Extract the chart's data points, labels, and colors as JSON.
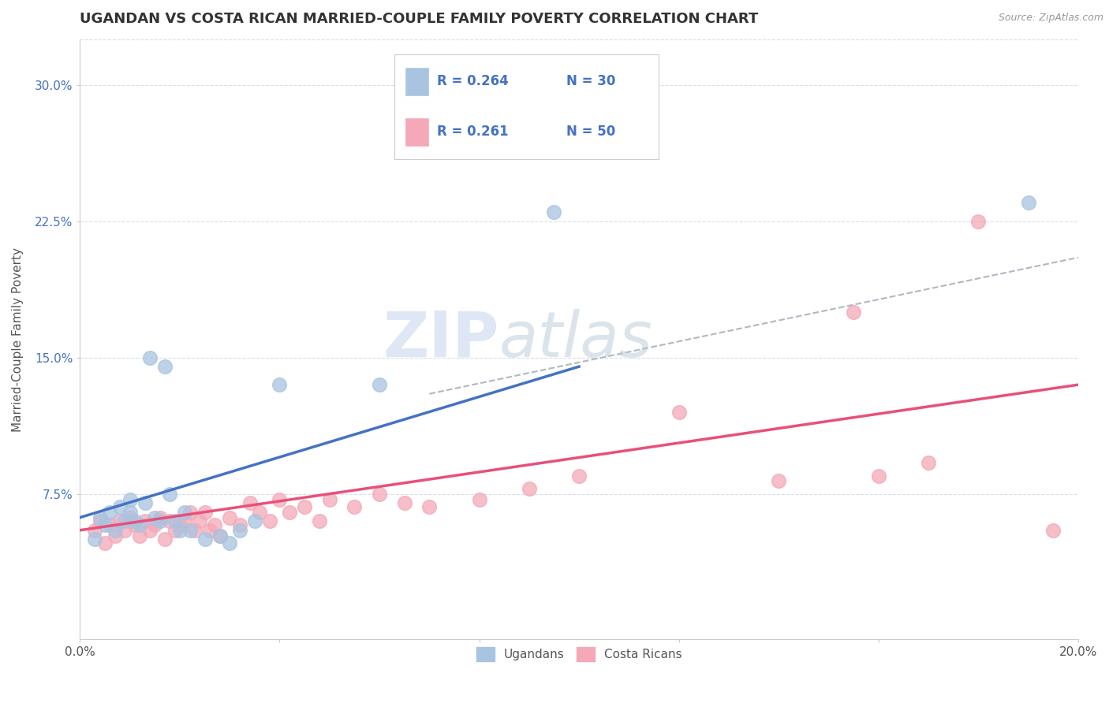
{
  "title": "UGANDAN VS COSTA RICAN MARRIED-COUPLE FAMILY POVERTY CORRELATION CHART",
  "source_text": "Source: ZipAtlas.com",
  "xlabel": "",
  "ylabel": "Married-Couple Family Poverty",
  "xlim": [
    0.0,
    0.2
  ],
  "ylim": [
    -0.005,
    0.325
  ],
  "xticks": [
    0.0,
    0.04,
    0.08,
    0.12,
    0.16,
    0.2
  ],
  "xticklabels": [
    "0.0%",
    "",
    "",
    "",
    "",
    "20.0%"
  ],
  "yticks": [
    0.075,
    0.15,
    0.225,
    0.3
  ],
  "yticklabels": [
    "7.5%",
    "15.0%",
    "22.5%",
    "30.0%"
  ],
  "ugandan_color": "#a8c4e0",
  "costa_rican_color": "#f4a8b8",
  "ugandan_line_color": "#4472c4",
  "costa_rican_line_color": "#e8507a",
  "dashed_line_color": "#b0b8c0",
  "legend_R1": "R = 0.264",
  "legend_N1": "N = 30",
  "legend_R2": "R = 0.261",
  "legend_N2": "N = 50",
  "legend_label1": "Ugandans",
  "legend_label2": "Costa Ricans",
  "watermark_zip": "ZIP",
  "watermark_atlas": "atlas",
  "background_color": "#ffffff",
  "grid_color": "#d8dde8",
  "title_fontsize": 13,
  "axis_label_fontsize": 11,
  "tick_fontsize": 11,
  "ugandan_x": [
    0.003,
    0.004,
    0.005,
    0.006,
    0.007,
    0.008,
    0.009,
    0.01,
    0.01,
    0.011,
    0.012,
    0.013,
    0.014,
    0.015,
    0.016,
    0.017,
    0.018,
    0.019,
    0.02,
    0.021,
    0.022,
    0.025,
    0.028,
    0.03,
    0.032,
    0.035,
    0.04,
    0.06,
    0.095,
    0.19
  ],
  "ugandan_y": [
    0.05,
    0.062,
    0.058,
    0.065,
    0.055,
    0.068,
    0.06,
    0.065,
    0.072,
    0.06,
    0.058,
    0.07,
    0.15,
    0.062,
    0.06,
    0.145,
    0.075,
    0.06,
    0.055,
    0.065,
    0.055,
    0.05,
    0.052,
    0.048,
    0.055,
    0.06,
    0.135,
    0.135,
    0.23,
    0.235
  ],
  "costa_rican_x": [
    0.003,
    0.004,
    0.005,
    0.006,
    0.007,
    0.008,
    0.009,
    0.01,
    0.011,
    0.012,
    0.013,
    0.014,
    0.015,
    0.016,
    0.017,
    0.018,
    0.019,
    0.02,
    0.021,
    0.022,
    0.023,
    0.024,
    0.025,
    0.026,
    0.027,
    0.028,
    0.03,
    0.032,
    0.034,
    0.036,
    0.038,
    0.04,
    0.042,
    0.045,
    0.048,
    0.05,
    0.055,
    0.06,
    0.065,
    0.07,
    0.08,
    0.09,
    0.1,
    0.12,
    0.14,
    0.155,
    0.16,
    0.17,
    0.18,
    0.195
  ],
  "costa_rican_y": [
    0.055,
    0.06,
    0.048,
    0.058,
    0.052,
    0.06,
    0.055,
    0.062,
    0.058,
    0.052,
    0.06,
    0.055,
    0.058,
    0.062,
    0.05,
    0.06,
    0.055,
    0.058,
    0.06,
    0.065,
    0.055,
    0.06,
    0.065,
    0.055,
    0.058,
    0.052,
    0.062,
    0.058,
    0.07,
    0.065,
    0.06,
    0.072,
    0.065,
    0.068,
    0.06,
    0.072,
    0.068,
    0.075,
    0.07,
    0.068,
    0.072,
    0.078,
    0.085,
    0.12,
    0.082,
    0.175,
    0.085,
    0.092,
    0.225,
    0.055
  ],
  "ug_line_x0": 0.0,
  "ug_line_y0": 0.062,
  "ug_line_x1": 0.1,
  "ug_line_y1": 0.145,
  "cr_line_x0": 0.0,
  "cr_line_y0": 0.055,
  "cr_line_x1": 0.2,
  "cr_line_y1": 0.135,
  "dash_line_x0": 0.07,
  "dash_line_y0": 0.13,
  "dash_line_x1": 0.2,
  "dash_line_y1": 0.205
}
